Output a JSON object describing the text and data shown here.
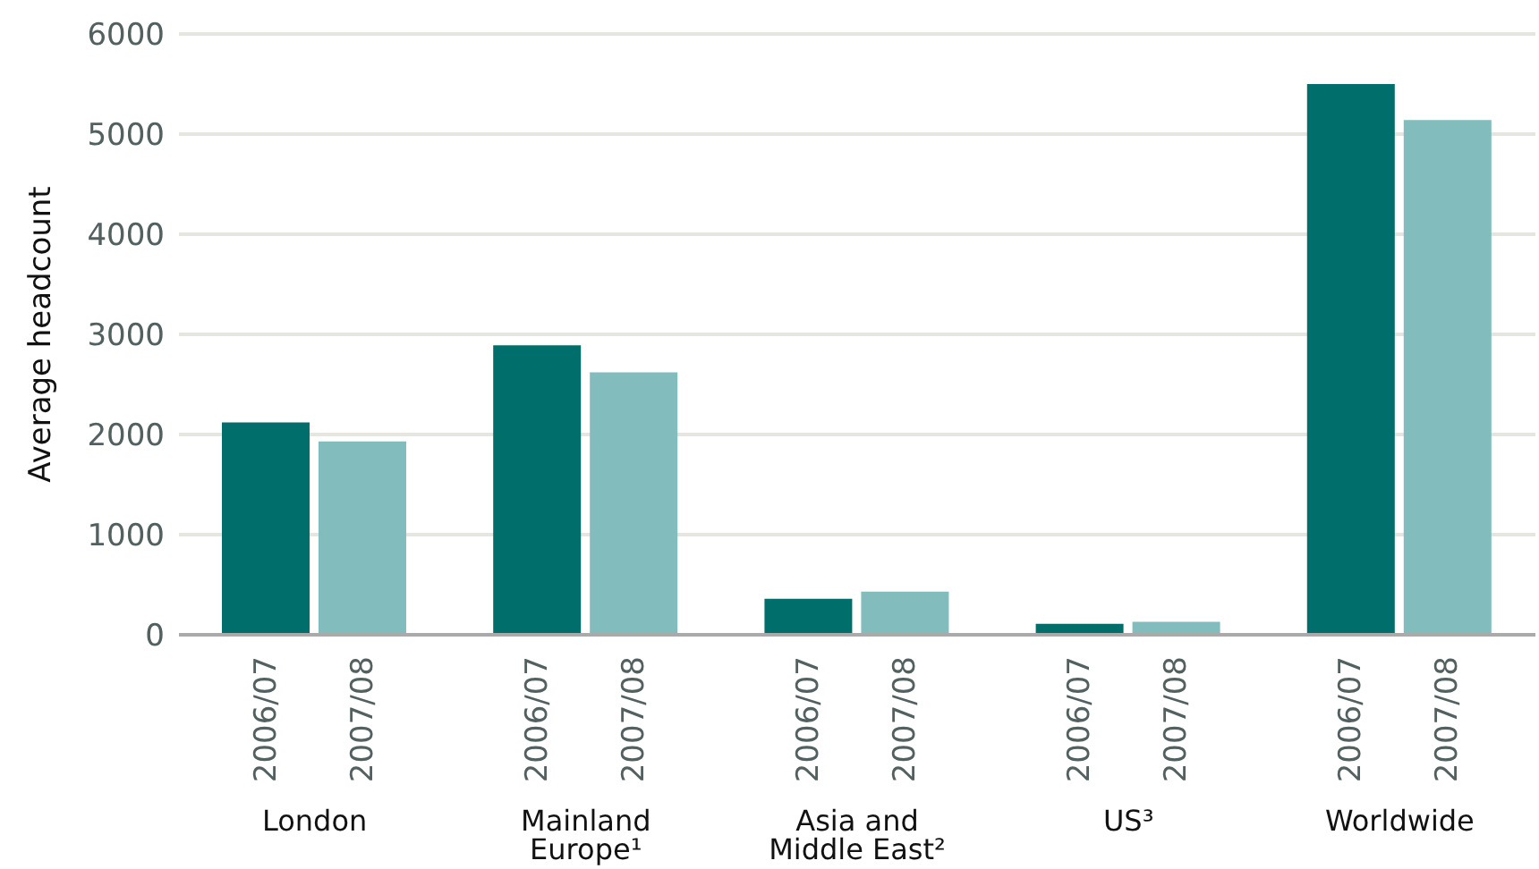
{
  "chart_data": {
    "type": "bar",
    "ylabel": "Average headcount",
    "categories": [
      "London",
      "Mainland Europe¹",
      "Asia and Middle East²",
      "US³",
      "Worldwide"
    ],
    "series": [
      {
        "name": "2006/07",
        "color": "#006e6a",
        "values": [
          2120,
          2890,
          360,
          110,
          5500
        ]
      },
      {
        "name": "2007/08",
        "color": "#82bcbd",
        "values": [
          1930,
          2620,
          430,
          130,
          5140
        ]
      }
    ],
    "ylim": [
      0,
      6000
    ],
    "yticks": [
      0,
      1000,
      2000,
      3000,
      4000,
      5000,
      6000
    ],
    "grid": "y",
    "legend": false
  }
}
